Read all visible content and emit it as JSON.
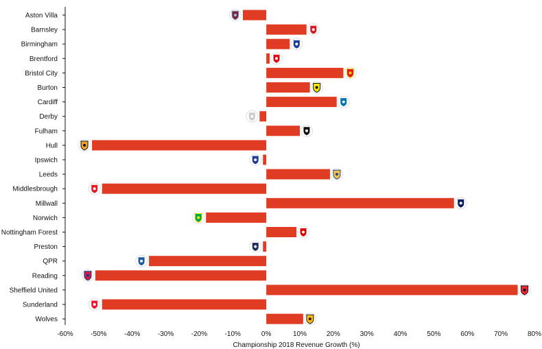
{
  "chart_data": {
    "type": "bar",
    "orientation": "horizontal",
    "xlabel": "Championship 2018 Revenue Growth (%)",
    "ylabel": "",
    "title": "",
    "xlim": [
      -60,
      80
    ],
    "xticks": [
      -60,
      -50,
      -40,
      -30,
      -20,
      -10,
      0,
      10,
      20,
      30,
      40,
      50,
      60,
      70,
      80
    ],
    "tick_suffix": "%",
    "bar_color": "#e03c24",
    "grid": false,
    "legend": "none",
    "categories": [
      "Aston Villa",
      "Barnsley",
      "Birmingham",
      "Brentford",
      "Bristol City",
      "Burton",
      "Cardiff",
      "Derby",
      "Fulham",
      "Hull",
      "Ipswich",
      "Leeds",
      "Middlesbrough",
      "Millwall",
      "Norwich",
      "Nottingham Forest",
      "Preston",
      "QPR",
      "Reading",
      "Sheffield United",
      "Sunderland",
      "Wolves"
    ],
    "values": [
      -7,
      12,
      7,
      1,
      23,
      13,
      21,
      -2,
      10,
      -52,
      -1,
      19,
      -49,
      56,
      -18,
      9,
      -1,
      -35,
      -51,
      75,
      -49,
      11
    ],
    "badges": [
      {
        "icon": "aston-villa-crest",
        "primary": "#7a263a",
        "secondary": "#95bfe5"
      },
      {
        "icon": "barnsley-crest",
        "primary": "#d71920",
        "secondary": "#ffffff"
      },
      {
        "icon": "birmingham-crest",
        "primary": "#1c3f94",
        "secondary": "#ffffff"
      },
      {
        "icon": "brentford-crest",
        "primary": "#e30613",
        "secondary": "#ffffff"
      },
      {
        "icon": "bristol-city-crest",
        "primary": "#e21b23",
        "secondary": "#ffd700"
      },
      {
        "icon": "burton-crest",
        "primary": "#f2e30a",
        "secondary": "#111111"
      },
      {
        "icon": "cardiff-crest",
        "primary": "#0070b5",
        "secondary": "#ffffff"
      },
      {
        "icon": "derby-crest",
        "primary": "#cccccc",
        "secondary": "#ffffff"
      },
      {
        "icon": "fulham-crest",
        "primary": "#111111",
        "secondary": "#ffffff"
      },
      {
        "icon": "hull-crest",
        "primary": "#f5a12d",
        "secondary": "#111111"
      },
      {
        "icon": "ipswich-crest",
        "primary": "#1e3f95",
        "secondary": "#ffffff"
      },
      {
        "icon": "leeds-crest",
        "primary": "#f6c343",
        "secondary": "#1d4289"
      },
      {
        "icon": "middlesbrough-crest",
        "primary": "#e11b22",
        "secondary": "#ffffff"
      },
      {
        "icon": "millwall-crest",
        "primary": "#001d5e",
        "secondary": "#ffffff"
      },
      {
        "icon": "norwich-crest",
        "primary": "#00a650",
        "secondary": "#fff200"
      },
      {
        "icon": "nottingham-forest-crest",
        "primary": "#dd0000",
        "secondary": "#ffffff"
      },
      {
        "icon": "preston-crest",
        "primary": "#1c2c5b",
        "secondary": "#ffffff"
      },
      {
        "icon": "qpr-crest",
        "primary": "#1d5ba4",
        "secondary": "#ffffff"
      },
      {
        "icon": "reading-crest",
        "primary": "#dd1740",
        "secondary": "#004494"
      },
      {
        "icon": "sheffield-united-crest",
        "primary": "#ee2737",
        "secondary": "#111111"
      },
      {
        "icon": "sunderland-crest",
        "primary": "#eb172b",
        "secondary": "#ffffff"
      },
      {
        "icon": "wolves-crest",
        "primary": "#fdb913",
        "secondary": "#231f20"
      }
    ]
  }
}
